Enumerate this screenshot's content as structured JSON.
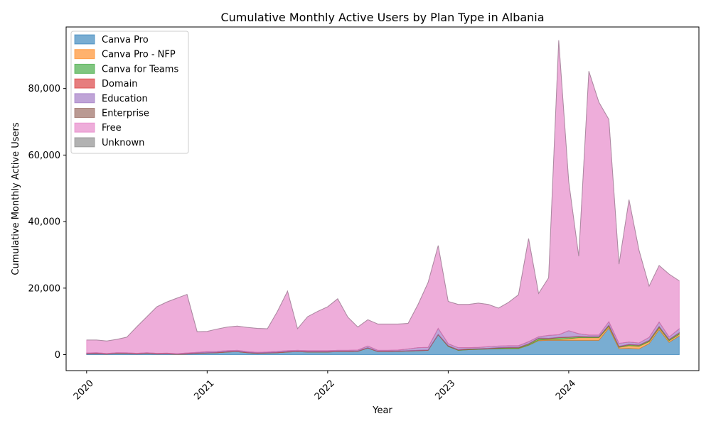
{
  "chart_data": {
    "type": "area",
    "stacked": true,
    "title": "Cumulative Monthly Active Users by Plan Type in Albania",
    "xlabel": "Year",
    "ylabel": "Cumulative Monthly Active Users",
    "xlim": [
      2019.83,
      2025.08
    ],
    "ylim": [
      -4800,
      98500
    ],
    "x_ticks": [
      2020,
      2021,
      2022,
      2023,
      2024
    ],
    "x_tick_labels": [
      "2020",
      "2021",
      "2022",
      "2023",
      "2024"
    ],
    "y_ticks": [
      0,
      20000,
      40000,
      60000,
      80000
    ],
    "y_tick_labels": [
      "0",
      "20,000",
      "40,000",
      "60,000",
      "80,000"
    ],
    "legend_position": "top-left",
    "x": [
      2020.0,
      2020.083,
      2020.167,
      2020.25,
      2020.333,
      2020.417,
      2020.5,
      2020.583,
      2020.667,
      2020.75,
      2020.833,
      2020.917,
      2021.0,
      2021.083,
      2021.167,
      2021.25,
      2021.333,
      2021.417,
      2021.5,
      2021.583,
      2021.667,
      2021.75,
      2021.833,
      2021.917,
      2022.0,
      2022.083,
      2022.167,
      2022.25,
      2022.333,
      2022.417,
      2022.5,
      2022.583,
      2022.667,
      2022.75,
      2022.833,
      2022.917,
      2023.0,
      2023.083,
      2023.167,
      2023.25,
      2023.333,
      2023.417,
      2023.5,
      2023.583,
      2023.667,
      2023.75,
      2023.833,
      2023.917,
      2024.0,
      2024.083,
      2024.167,
      2024.25,
      2024.333,
      2024.417,
      2024.5,
      2024.583,
      2024.667,
      2024.75,
      2024.833,
      2024.917
    ],
    "series": [
      {
        "name": "Canva Pro",
        "color": "#1f77b4",
        "values": [
          200,
          300,
          150,
          400,
          350,
          200,
          400,
          200,
          250,
          100,
          200,
          400,
          500,
          600,
          800,
          900,
          600,
          400,
          500,
          600,
          800,
          900,
          800,
          800,
          800,
          900,
          900,
          1000,
          2000,
          900,
          900,
          1000,
          1100,
          1200,
          1300,
          6000,
          2500,
          1300,
          1500,
          1600,
          1700,
          1800,
          1800,
          1800,
          2800,
          4200,
          4300,
          4300,
          4300,
          4300,
          4300,
          4300,
          8000,
          1800,
          1900,
          1700,
          3300,
          7500,
          3700,
          5600
        ]
      },
      {
        "name": "Canva Pro - NFP",
        "color": "#ff7f0e",
        "values": [
          0,
          0,
          0,
          0,
          0,
          0,
          0,
          0,
          0,
          0,
          0,
          0,
          0,
          0,
          0,
          0,
          0,
          0,
          0,
          0,
          0,
          0,
          0,
          0,
          0,
          0,
          0,
          0,
          0,
          0,
          0,
          0,
          0,
          0,
          0,
          0,
          0,
          0,
          0,
          0,
          0,
          0,
          100,
          100,
          100,
          200,
          300,
          300,
          500,
          800,
          800,
          800,
          500,
          400,
          800,
          800,
          600,
          600,
          500,
          500
        ]
      },
      {
        "name": "Canva for Teams",
        "color": "#2ca02c",
        "values": [
          0,
          0,
          0,
          0,
          0,
          0,
          0,
          0,
          0,
          0,
          0,
          0,
          0,
          0,
          0,
          0,
          0,
          0,
          0,
          0,
          0,
          0,
          0,
          0,
          0,
          0,
          0,
          0,
          0,
          0,
          0,
          0,
          0,
          0,
          0,
          0,
          100,
          100,
          100,
          100,
          100,
          200,
          200,
          200,
          300,
          500,
          200,
          500,
          400,
          300,
          200,
          200,
          300,
          200,
          300,
          300,
          300,
          300,
          300,
          400
        ]
      },
      {
        "name": "Domain",
        "color": "#d62728",
        "values": [
          100,
          100,
          100,
          100,
          100,
          100,
          100,
          100,
          100,
          100,
          100,
          100,
          100,
          100,
          100,
          100,
          100,
          100,
          100,
          100,
          100,
          100,
          100,
          100,
          100,
          100,
          100,
          100,
          100,
          100,
          100,
          100,
          100,
          100,
          100,
          100,
          100,
          100,
          100,
          100,
          100,
          100,
          100,
          100,
          100,
          100,
          100,
          100,
          100,
          100,
          100,
          100,
          100,
          100,
          100,
          100,
          100,
          100,
          100,
          100
        ]
      },
      {
        "name": "Education",
        "color": "#9467bd",
        "values": [
          200,
          200,
          100,
          100,
          100,
          100,
          100,
          100,
          100,
          100,
          200,
          200,
          300,
          300,
          300,
          300,
          200,
          200,
          200,
          300,
          300,
          300,
          300,
          300,
          300,
          300,
          300,
          300,
          500,
          300,
          300,
          300,
          500,
          800,
          800,
          1800,
          600,
          600,
          400,
          400,
          500,
          500,
          500,
          500,
          600,
          400,
          900,
          800,
          1900,
          800,
          500,
          500,
          1000,
          900,
          700,
          600,
          900,
          1300,
          700,
          1200
        ]
      },
      {
        "name": "Enterprise",
        "color": "#8c564b",
        "values": [
          0,
          0,
          0,
          0,
          0,
          0,
          0,
          0,
          0,
          0,
          0,
          0,
          0,
          0,
          0,
          0,
          0,
          0,
          0,
          0,
          0,
          0,
          0,
          0,
          0,
          0,
          0,
          0,
          0,
          0,
          0,
          0,
          0,
          0,
          0,
          0,
          0,
          0,
          0,
          0,
          0,
          0,
          0,
          0,
          0,
          0,
          0,
          0,
          0,
          0,
          0,
          0,
          0,
          0,
          0,
          0,
          0,
          0,
          0,
          0
        ]
      },
      {
        "name": "Free",
        "color": "#e377c2",
        "values": [
          3900,
          3800,
          3750,
          4000,
          4700,
          8000,
          10800,
          14000,
          15400,
          16700,
          17600,
          6200,
          6100,
          6700,
          7100,
          7300,
          7300,
          7200,
          7000,
          12000,
          17900,
          6500,
          10200,
          11800,
          13200,
          15500,
          10000,
          6900,
          7900,
          7900,
          7900,
          7800,
          7700,
          13000,
          19500,
          24900,
          12700,
          13000,
          13000,
          13300,
          12700,
          11400,
          13000,
          15300,
          31000,
          13000,
          17300,
          88500,
          44800,
          23300,
          79300,
          70000,
          60800,
          23800,
          42800,
          27900,
          15400,
          17000,
          18900,
          14400
        ]
      },
      {
        "name": "Unknown",
        "color": "#7f7f7f",
        "values": [
          0,
          0,
          0,
          0,
          0,
          0,
          0,
          0,
          0,
          0,
          0,
          0,
          0,
          0,
          0,
          0,
          0,
          0,
          0,
          0,
          0,
          0,
          0,
          0,
          0,
          0,
          0,
          0,
          0,
          0,
          0,
          0,
          0,
          0,
          0,
          0,
          0,
          0,
          0,
          0,
          0,
          0,
          0,
          0,
          0,
          0,
          0,
          0,
          0,
          0,
          0,
          0,
          0,
          0,
          0,
          0,
          0,
          0,
          0,
          0
        ]
      }
    ]
  }
}
